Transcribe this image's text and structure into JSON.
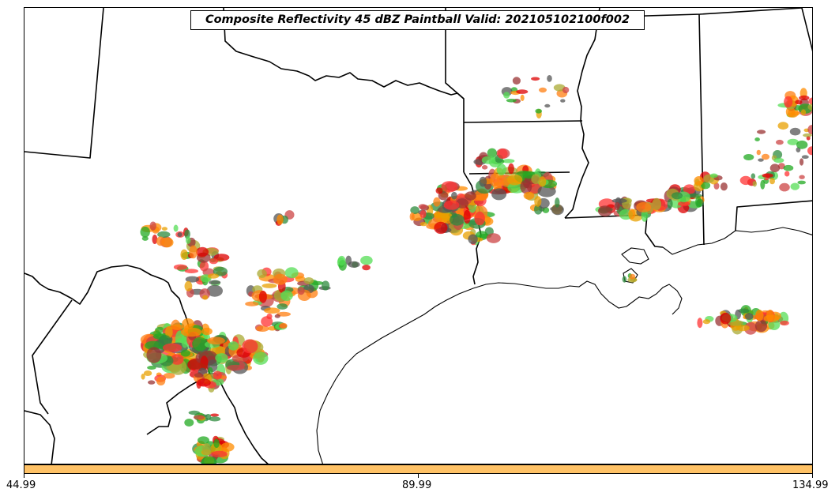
{
  "title": "Composite Reflectivity 45 dBZ Paintball Valid: 202105102100f002",
  "colorbar": {
    "color": "#FFC266",
    "ticks": [
      "44.99",
      "89.99",
      "134.99"
    ]
  },
  "member_colors": [
    "#FF3333",
    "#FF8C00",
    "#DD0000",
    "#22AA22",
    "#55DD55",
    "#2E8B3E",
    "#AAAA33",
    "#555555",
    "#CC4444",
    "#FF7F11",
    "#E8A000",
    "#993333"
  ]
}
